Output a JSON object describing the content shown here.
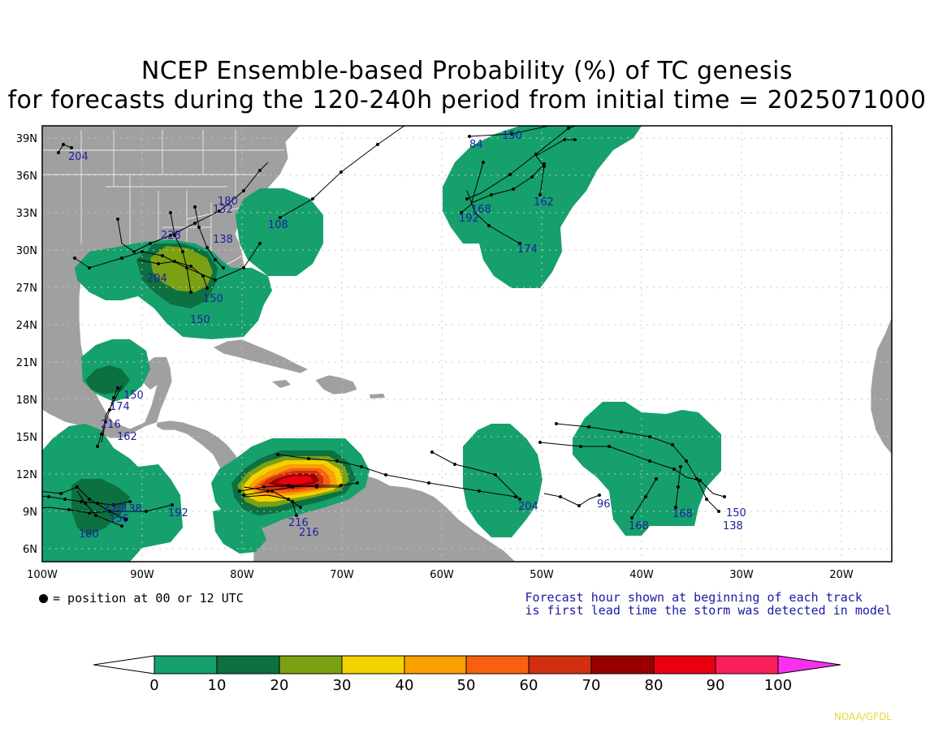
{
  "title": {
    "line1": "NCEP Ensemble-based Probability (%) of TC genesis",
    "line2": "for forecasts during the 120-240h period from initial time = 2025071000"
  },
  "map": {
    "lon_range": [
      -100,
      -15
    ],
    "lat_range": [
      5,
      40
    ],
    "x_ticks": [
      "100W",
      "90W",
      "80W",
      "70W",
      "60W",
      "50W",
      "40W",
      "30W",
      "20W"
    ],
    "y_ticks": [
      "39N",
      "36N",
      "33N",
      "30N",
      "27N",
      "24N",
      "21N",
      "18N",
      "15N",
      "12N",
      "9N",
      "6N"
    ],
    "land_color": "#a0a0a0",
    "ocean_color": "#ffffff",
    "grid": "dotted"
  },
  "probability_regions": [
    {
      "name": "gulf-of-mexico",
      "max_percent": 30
    },
    {
      "name": "southeast-us-coast",
      "max_percent": 10
    },
    {
      "name": "central-atlantic-north",
      "max_percent": 10
    },
    {
      "name": "bay-of-campeche",
      "max_percent": 20
    },
    {
      "name": "eastern-pacific",
      "max_percent": 20
    },
    {
      "name": "southern-caribbean",
      "max_percent": 90
    },
    {
      "name": "tropical-atlantic-west",
      "max_percent": 10
    },
    {
      "name": "tropical-atlantic-east",
      "max_percent": 10
    }
  ],
  "track_labels": [
    "204",
    "150",
    "84",
    "162",
    "168",
    "192",
    "174",
    "108",
    "132",
    "180",
    "138",
    "228",
    "150",
    "150",
    "150",
    "174",
    "216",
    "162",
    "138",
    "180",
    "120",
    "156",
    "192",
    "204",
    "96",
    "168",
    "168",
    "150",
    "138",
    "216",
    "216",
    "204"
  ],
  "notes": {
    "position_legend": "= position at 00 or 12 UTC",
    "forecast_note_line1": "Forecast hour shown at beginning of each track",
    "forecast_note_line2": "is first lead time the storm was detected in model"
  },
  "colorbar": {
    "labels": [
      "0",
      "10",
      "20",
      "30",
      "40",
      "50",
      "60",
      "70",
      "80",
      "90",
      "100"
    ],
    "colors": [
      "#ffffff",
      "#16a06c",
      "#0c7040",
      "#7ca014",
      "#f2d200",
      "#f8a000",
      "#f86010",
      "#d03010",
      "#980000",
      "#e80010",
      "#f8205a",
      "#f830f0"
    ]
  },
  "credit": "NOAA/GFDL"
}
